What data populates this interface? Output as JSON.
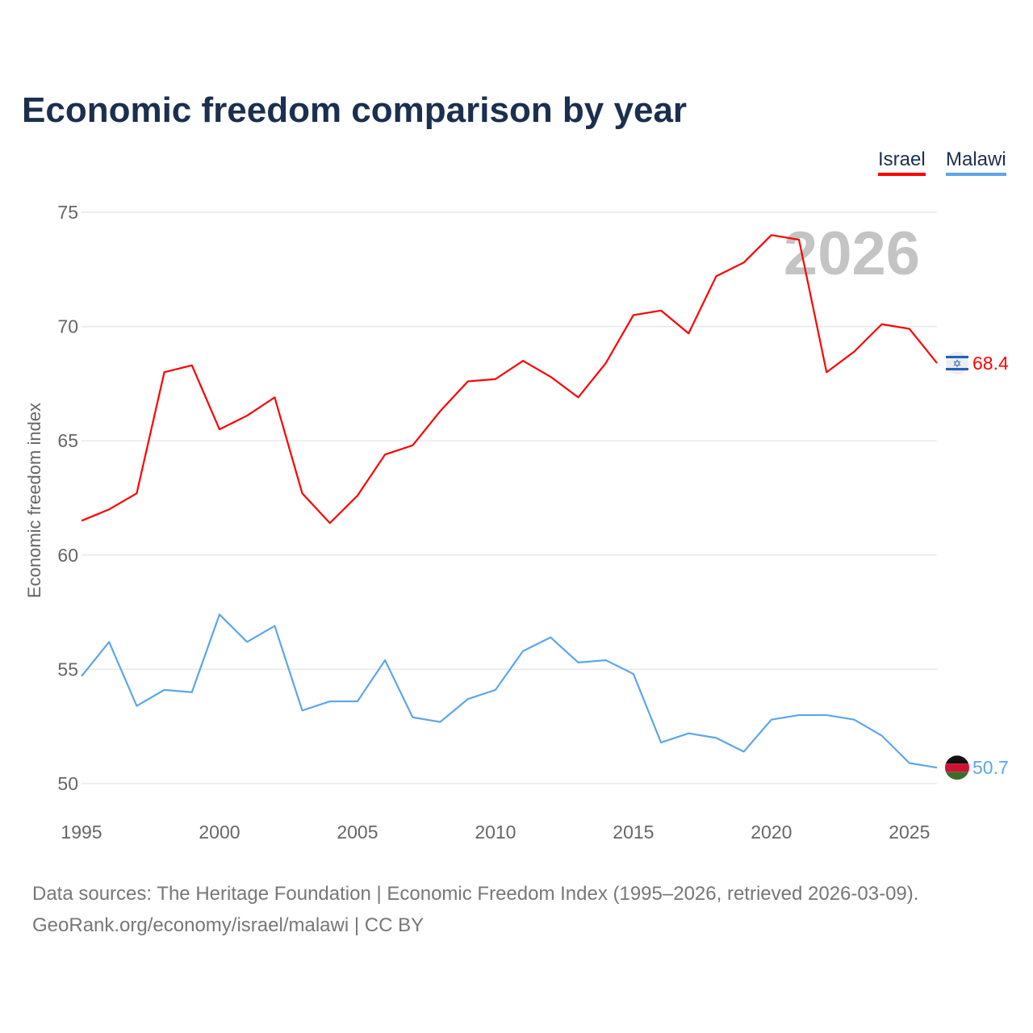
{
  "chart_data": {
    "type": "line",
    "title": "Economic freedom comparison by year",
    "xlabel": "",
    "ylabel": "Economic freedom index",
    "ylim": [
      50,
      75
    ],
    "xlim": [
      1995,
      2026
    ],
    "yticks": [
      50,
      55,
      60,
      65,
      70,
      75
    ],
    "xticks": [
      1995,
      2000,
      2005,
      2010,
      2015,
      2020,
      2025
    ],
    "year_watermark": "2026",
    "grid": true,
    "legend": "top-right",
    "x": [
      1995,
      1996,
      1997,
      1998,
      1999,
      2000,
      2001,
      2002,
      2003,
      2004,
      2005,
      2006,
      2007,
      2008,
      2009,
      2010,
      2011,
      2012,
      2013,
      2014,
      2015,
      2016,
      2017,
      2018,
      2019,
      2020,
      2021,
      2022,
      2023,
      2024,
      2025,
      2026
    ],
    "series": [
      {
        "name": "Israel",
        "color": "#ff0000",
        "end_label": "68.4",
        "values": [
          61.5,
          62.0,
          62.7,
          68.0,
          68.3,
          65.5,
          66.1,
          66.9,
          62.7,
          61.4,
          62.6,
          64.4,
          64.8,
          66.3,
          67.6,
          67.7,
          68.5,
          67.8,
          66.9,
          68.4,
          70.5,
          70.7,
          69.7,
          72.2,
          72.8,
          74.0,
          73.8,
          68.0,
          68.9,
          70.1,
          69.9,
          68.4
        ]
      },
      {
        "name": "Malawi",
        "color": "#5da5ec",
        "end_label": "50.7",
        "values": [
          54.7,
          56.2,
          53.4,
          54.1,
          54.0,
          57.4,
          56.2,
          56.9,
          53.2,
          53.6,
          53.6,
          55.4,
          52.9,
          52.7,
          53.7,
          54.1,
          55.8,
          56.4,
          55.3,
          55.4,
          54.8,
          51.8,
          52.2,
          52.0,
          51.4,
          52.8,
          53.0,
          53.0,
          52.8,
          52.1,
          50.9,
          50.7
        ]
      }
    ]
  },
  "footer": {
    "line1": "Data sources: The Heritage Foundation | Economic Freedom Index (1995–2026, retrieved 2026-03-09).",
    "line2": "GeoRank.org/economy/israel/malawi | CC BY"
  }
}
